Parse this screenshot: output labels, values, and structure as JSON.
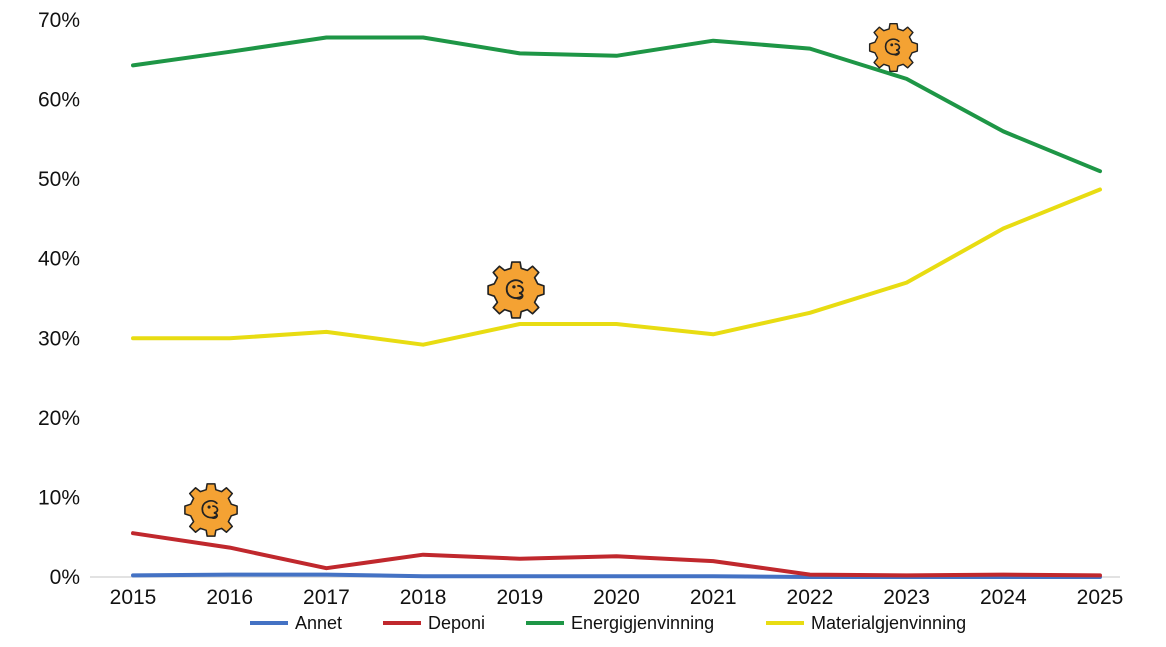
{
  "chart_data": {
    "type": "line",
    "x": [
      "2015",
      "2016",
      "2017",
      "2018",
      "2019",
      "2020",
      "2021",
      "2022",
      "2023",
      "2024",
      "2025"
    ],
    "y_ticks": [
      "0%",
      "10%",
      "20%",
      "30%",
      "40%",
      "50%",
      "60%",
      "70%"
    ],
    "ylim": [
      0,
      70
    ],
    "grid": false,
    "legend_position": "bottom",
    "series": [
      {
        "name": "Annet",
        "color": "#4472C4",
        "values": [
          0.2,
          0.3,
          0.3,
          0.1,
          0.1,
          0.1,
          0.1,
          0.0,
          0.0,
          0.0,
          0.0
        ]
      },
      {
        "name": "Deponi",
        "color": "#C0282D",
        "values": [
          5.5,
          3.7,
          1.1,
          2.8,
          2.3,
          2.6,
          2.0,
          0.3,
          0.2,
          0.3,
          0.2
        ]
      },
      {
        "name": "Energigjenvinning",
        "color": "#1E9646",
        "values": [
          64.3,
          66.0,
          67.8,
          67.8,
          65.8,
          65.5,
          67.4,
          66.4,
          62.6,
          56.0,
          51.0
        ]
      },
      {
        "name": "Materialgjenvinning",
        "color": "#E8DC12",
        "values": [
          30.0,
          30.0,
          30.8,
          29.2,
          31.8,
          31.8,
          30.5,
          33.2,
          37.0,
          43.8,
          48.7
        ]
      }
    ]
  },
  "decorations": {
    "icon_name": "gear-face-icon",
    "color": "#F4A233"
  }
}
